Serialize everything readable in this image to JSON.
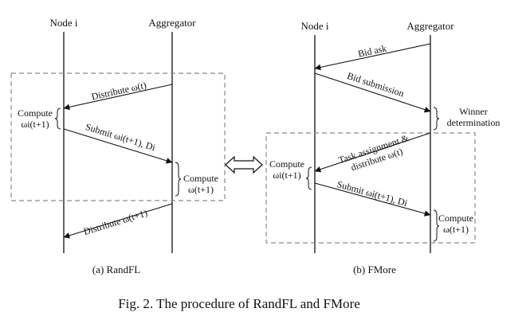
{
  "figure": {
    "caption": "Fig. 2.  The procedure of RandFL and FMore"
  },
  "randfl": {
    "node_label": "Node i",
    "aggregator_label": "Aggregator",
    "messages": {
      "distribute_1": "Distribute ω(t)",
      "submit": "Submit ωi(t+1), Di",
      "distribute_2": "Distribute ω(t+1)"
    },
    "node_compute": [
      "Compute",
      "ωi(t+1)"
    ],
    "agg_compute": [
      "Compute",
      "ω(t+1)"
    ],
    "subtitle": "(a) RandFL"
  },
  "fmore": {
    "node_label": "Node i",
    "aggregator_label": "Aggregator",
    "messages": {
      "bid_ask": "Bid ask",
      "bid_submission": "Bid submission",
      "task_assignment": [
        "Task assignment &",
        "distribute ω(t)"
      ],
      "submit": "Submit ωi(t+1), Di"
    },
    "winner": [
      "Winner",
      "determination"
    ],
    "node_compute": [
      "Compute",
      "ωi(t+1)"
    ],
    "agg_compute": [
      "Compute",
      "ω(t+1)"
    ],
    "subtitle": "(b) FMore"
  },
  "icons": {
    "connector": "double-headed-arrow-icon"
  }
}
